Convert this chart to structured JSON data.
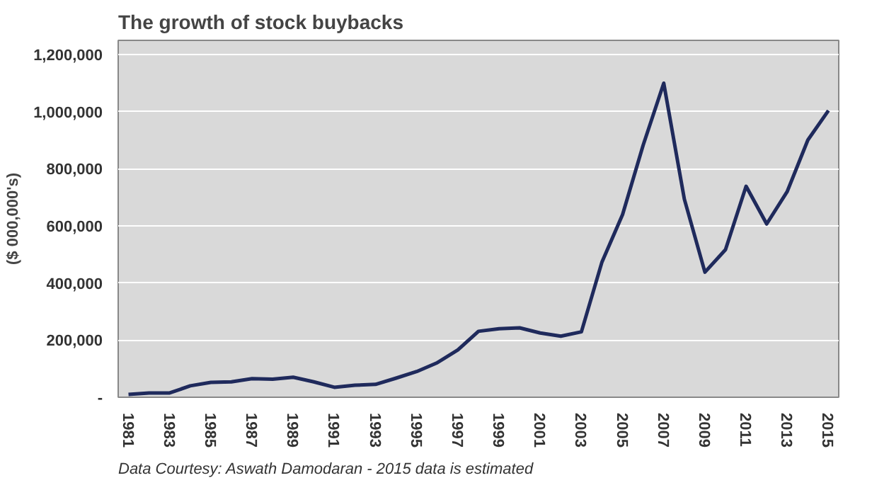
{
  "chart_data": {
    "type": "line",
    "title": "The growth of stock buybacks",
    "ylabel": "($ 000,000's)",
    "x": [
      1981,
      1982,
      1983,
      1984,
      1985,
      1986,
      1987,
      1988,
      1989,
      1990,
      1991,
      1992,
      1993,
      1994,
      1995,
      1996,
      1997,
      1998,
      1999,
      2000,
      2001,
      2002,
      2003,
      2004,
      2005,
      2006,
      2007,
      2008,
      2009,
      2010,
      2011,
      2012,
      2013,
      2014,
      2015
    ],
    "series": [
      {
        "color": "#1f2a5c",
        "values": [
          10000,
          15000,
          15000,
          40000,
          52000,
          54000,
          65000,
          63000,
          70000,
          54000,
          35000,
          42000,
          45000,
          67000,
          90000,
          121000,
          166000,
          231000,
          240000,
          243000,
          225000,
          214000,
          229000,
          474000,
          640000,
          883000,
          1100000,
          694000,
          438000,
          517000,
          739000,
          607000,
          721000,
          901000,
          1004000
        ]
      }
    ],
    "xlim": [
      1980.5,
      2015.5
    ],
    "xticks": [
      1981,
      1983,
      1985,
      1987,
      1989,
      1991,
      1993,
      1995,
      1997,
      1999,
      2001,
      2003,
      2005,
      2007,
      2009,
      2011,
      2013,
      2015
    ],
    "ylim": [
      0,
      1250000
    ],
    "yticks": [
      {
        "value": 0,
        "label": "-"
      },
      {
        "value": 200000,
        "label": "200,000"
      },
      {
        "value": 400000,
        "label": "400,000"
      },
      {
        "value": 600000,
        "label": "600,000"
      },
      {
        "value": 800000,
        "label": "800,000"
      },
      {
        "value": 1000000,
        "label": "1,000,000"
      },
      {
        "value": 1200000,
        "label": "1,200,000"
      }
    ],
    "grid": "y",
    "marker": "none",
    "line_style": "solid",
    "annotations": [
      "Data Courtesy:   Aswath Damodaran  -  2015 data is estimated"
    ]
  }
}
